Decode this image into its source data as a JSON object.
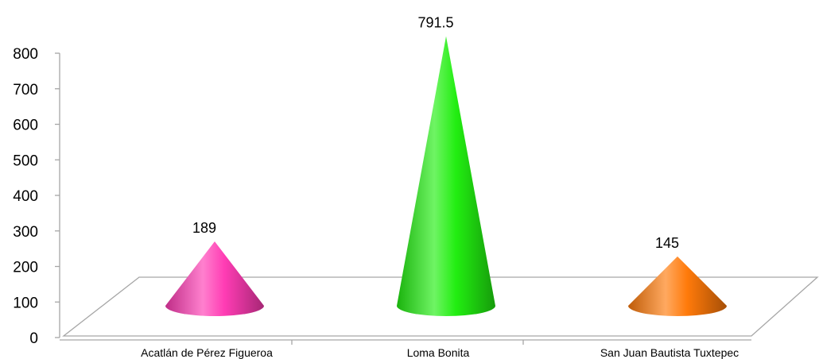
{
  "chart_data": {
    "type": "bar",
    "categories": [
      "Acatlán de Pérez Figueroa",
      "Loma Bonita",
      "San Juan Bautista Tuxtepec"
    ],
    "values": [
      189,
      791.5,
      145
    ],
    "data_labels": [
      "189",
      "791.5",
      "145"
    ],
    "yticks": [
      "0",
      "100",
      "200",
      "300",
      "400",
      "500",
      "600",
      "700",
      "800"
    ],
    "ylim": [
      0,
      800
    ],
    "title": "",
    "xlabel": "",
    "ylabel": "",
    "grid": false,
    "legend": false,
    "colors": [
      "#ff3cb4",
      "#22ee11",
      "#ff7a0a"
    ]
  }
}
